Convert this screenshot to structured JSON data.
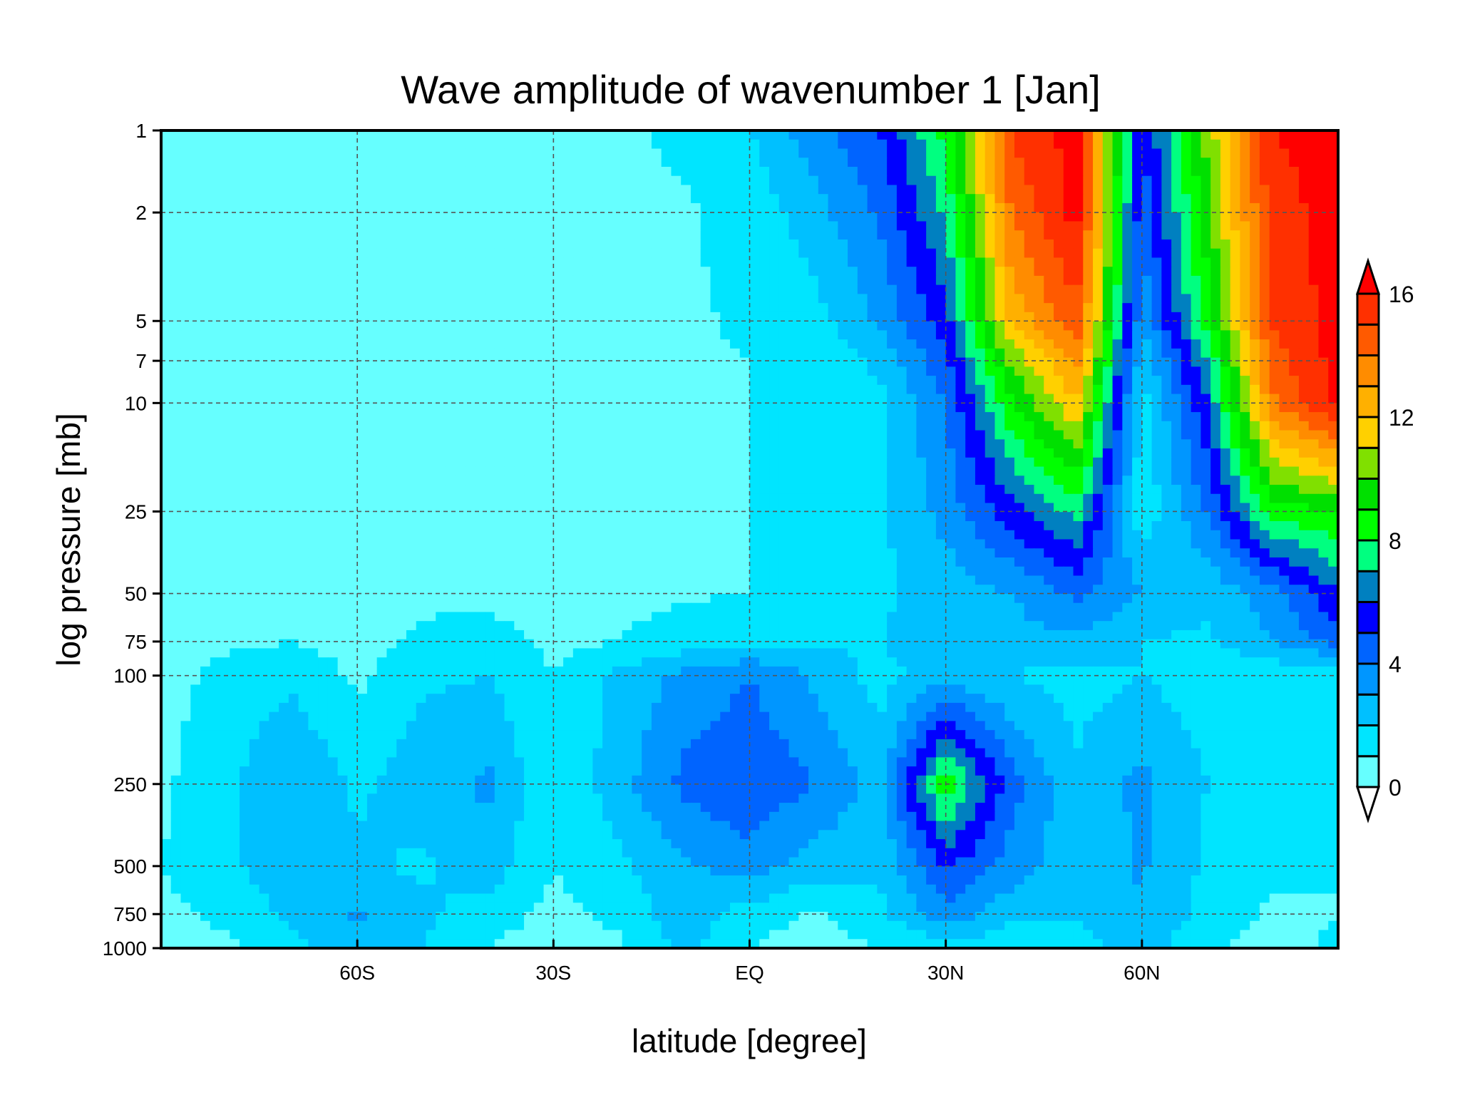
{
  "chart_data": {
    "type": "heatmap",
    "title": "Wave amplitude of wavenumber 1 [Jan]",
    "xlabel": "latitude [degree]",
    "ylabel": "log pressure [mb]",
    "xlim": [
      -90,
      90
    ],
    "ylim": [
      1000,
      1
    ],
    "y_scale": "log",
    "grid": true,
    "x_ticks": [
      {
        "value": -60,
        "label": "60S"
      },
      {
        "value": -30,
        "label": "30S"
      },
      {
        "value": 0,
        "label": "EQ"
      },
      {
        "value": 30,
        "label": "30N"
      },
      {
        "value": 60,
        "label": "60N"
      }
    ],
    "y_ticks": [
      {
        "value": 1,
        "label": "1"
      },
      {
        "value": 2,
        "label": "2"
      },
      {
        "value": 5,
        "label": "5"
      },
      {
        "value": 7,
        "label": "7"
      },
      {
        "value": 10,
        "label": "10"
      },
      {
        "value": 25,
        "label": "25"
      },
      {
        "value": 50,
        "label": "50"
      },
      {
        "value": 75,
        "label": "75"
      },
      {
        "value": 100,
        "label": "100"
      },
      {
        "value": 250,
        "label": "250"
      },
      {
        "value": 500,
        "label": "500"
      },
      {
        "value": 750,
        "label": "750"
      },
      {
        "value": 1000,
        "label": "1000"
      }
    ],
    "x": [
      -90,
      -80,
      -70,
      -60,
      -50,
      -40,
      -30,
      -20,
      -10,
      0,
      10,
      20,
      30,
      40,
      50,
      60,
      70,
      80,
      90
    ],
    "levels_mb": [
      1000,
      750,
      500,
      250,
      100,
      75,
      50,
      25,
      10,
      7,
      5,
      2,
      1
    ],
    "values": [
      [
        0.5,
        0.8,
        1.6,
        2.6,
        2.0,
        1.0,
        0.5,
        0.8,
        2.3,
        1.0,
        0.5,
        1.0,
        1.5,
        1.3,
        1.5,
        2.5,
        1.2,
        0.6,
        1.2
      ],
      [
        0.8,
        1.2,
        2.3,
        3.1,
        2.2,
        1.5,
        0.7,
        1.3,
        2.6,
        1.5,
        0.8,
        1.8,
        3.6,
        2.3,
        2.1,
        3.0,
        1.6,
        0.8,
        1.0
      ],
      [
        1.0,
        1.8,
        2.6,
        2.2,
        1.8,
        2.6,
        1.0,
        1.8,
        2.8,
        3.6,
        2.5,
        2.2,
        5.2,
        3.6,
        2.2,
        3.1,
        1.8,
        1.2,
        1.0
      ],
      [
        0.8,
        1.8,
        3.0,
        1.8,
        2.6,
        3.2,
        1.0,
        2.6,
        4.3,
        4.8,
        4.0,
        2.6,
        8.8,
        4.4,
        2.2,
        3.3,
        2.0,
        1.4,
        1.0
      ],
      [
        0.6,
        1.3,
        1.8,
        0.8,
        1.8,
        2.0,
        1.0,
        2.2,
        3.3,
        4.0,
        2.8,
        1.6,
        2.6,
        2.0,
        1.6,
        2.0,
        1.4,
        1.2,
        1.0
      ],
      [
        0.5,
        0.8,
        1.0,
        0.6,
        1.2,
        1.3,
        0.8,
        1.0,
        1.4,
        1.7,
        1.8,
        2.0,
        2.8,
        2.6,
        2.8,
        2.0,
        1.8,
        3.0,
        4.5
      ],
      [
        0.5,
        0.7,
        0.8,
        0.7,
        0.8,
        0.8,
        0.8,
        0.8,
        0.9,
        1.0,
        1.2,
        1.8,
        2.4,
        3.0,
        4.2,
        3.0,
        2.2,
        3.6,
        6.0
      ],
      [
        0.5,
        0.7,
        0.8,
        0.8,
        0.8,
        0.8,
        0.8,
        0.8,
        0.9,
        1.0,
        1.1,
        1.8,
        3.4,
        5.6,
        7.4,
        1.2,
        4.0,
        8.5,
        9.0
      ],
      [
        0.5,
        0.7,
        0.8,
        0.8,
        0.8,
        0.8,
        0.8,
        0.8,
        0.9,
        1.0,
        1.2,
        1.8,
        4.0,
        8.8,
        12.0,
        1.5,
        6.0,
        13.8,
        16.4
      ],
      [
        0.5,
        0.7,
        0.8,
        0.8,
        0.8,
        0.8,
        0.8,
        0.8,
        0.9,
        1.0,
        1.4,
        2.2,
        4.8,
        10.2,
        13.4,
        2.2,
        7.0,
        14.5,
        16.4
      ],
      [
        0.5,
        0.7,
        0.8,
        0.8,
        0.8,
        0.8,
        0.8,
        0.8,
        0.9,
        1.1,
        1.6,
        3.2,
        5.6,
        12.2,
        14.8,
        3.2,
        8.4,
        15.2,
        16.4
      ],
      [
        0.5,
        0.7,
        0.8,
        0.8,
        0.8,
        0.8,
        0.8,
        0.8,
        0.9,
        1.3,
        2.6,
        4.2,
        7.2,
        14.0,
        16.4,
        4.2,
        9.6,
        15.6,
        16.4
      ],
      [
        0.5,
        0.7,
        0.8,
        0.8,
        0.8,
        0.8,
        0.8,
        0.8,
        1.2,
        2.0,
        3.6,
        5.0,
        8.4,
        15.2,
        16.4,
        5.0,
        10.4,
        16.0,
        16.4
      ]
    ],
    "colorbar": {
      "levels": [
        0,
        1,
        2,
        3,
        4,
        5,
        6,
        7,
        8,
        9,
        10,
        11,
        12,
        13,
        14,
        15,
        16
      ],
      "tick_labels": [
        "0",
        "4",
        "8",
        "12",
        "16"
      ],
      "colors": [
        "#ffffff",
        "#66ffff",
        "#00e5ff",
        "#00c0ff",
        "#0096ff",
        "#0064ff",
        "#0000ff",
        "#0080c0",
        "#00ff80",
        "#00ff00",
        "#00e000",
        "#80e000",
        "#ffd000",
        "#ffb000",
        "#ff8c00",
        "#ff5a00",
        "#ff3000",
        "#ff0000"
      ],
      "extend": "both"
    }
  }
}
